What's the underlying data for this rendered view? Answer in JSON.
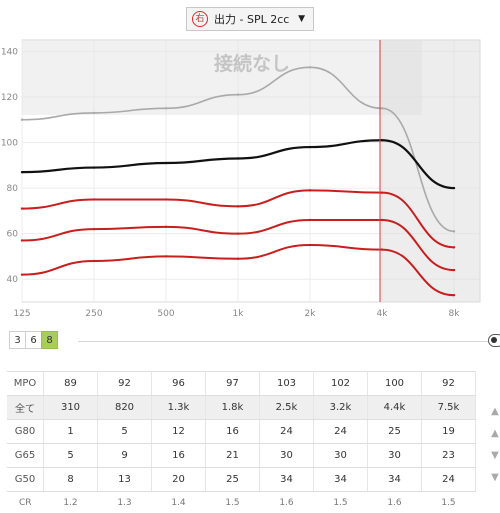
{
  "header": {
    "ear_label": "右",
    "title": "出力 - SPL 2cc"
  },
  "chart": {
    "no_connection_label": "接続なし",
    "y_ticks": [
      "140",
      "120",
      "100",
      "80",
      "60",
      "40"
    ],
    "x_ticks": [
      "125",
      "250",
      "500",
      "1k",
      "2k",
      "4k",
      "8k"
    ],
    "colors": {
      "mpo_curve": "#a9a9a9",
      "all_curve": "#111111",
      "gain_curves": "#c91e1e",
      "marker": "#d43a3a"
    }
  },
  "chart_data": {
    "type": "line",
    "x": [
      125,
      250,
      500,
      1000,
      2000,
      4000,
      8000
    ],
    "ylim": [
      30,
      145
    ],
    "x_scale": "log",
    "series": [
      {
        "values": [
          110,
          113,
          115,
          121,
          133,
          115,
          61
        ]
      },
      {
        "values": [
          87,
          89,
          91,
          93,
          98,
          101,
          80
        ]
      },
      {
        "values": [
          71,
          75,
          75,
          72,
          79,
          78,
          54
        ]
      },
      {
        "values": [
          57,
          62,
          63,
          60,
          66,
          66,
          44
        ]
      },
      {
        "values": [
          42,
          48,
          50,
          49,
          55,
          53,
          33
        ]
      }
    ]
  },
  "channels": {
    "options": [
      "3",
      "6",
      "8"
    ],
    "selected": "8"
  },
  "table": {
    "rows": [
      {
        "label": "MPO",
        "values": [
          "89",
          "92",
          "96",
          "97",
          "103",
          "102",
          "100",
          "92"
        ]
      },
      {
        "label": "全て",
        "values": [
          "310",
          "820",
          "1.3k",
          "1.8k",
          "2.5k",
          "3.2k",
          "4.4k",
          "7.5k"
        ]
      },
      {
        "label": "G80",
        "values": [
          "1",
          "5",
          "12",
          "16",
          "24",
          "24",
          "25",
          "19"
        ]
      },
      {
        "label": "G65",
        "values": [
          "5",
          "9",
          "16",
          "21",
          "30",
          "30",
          "30",
          "23"
        ]
      },
      {
        "label": "G50",
        "values": [
          "8",
          "13",
          "20",
          "25",
          "34",
          "34",
          "34",
          "24"
        ]
      },
      {
        "label": "CR",
        "values": [
          "1.2",
          "1.3",
          "1.4",
          "1.5",
          "1.6",
          "1.5",
          "1.6",
          "1.5"
        ]
      }
    ]
  }
}
